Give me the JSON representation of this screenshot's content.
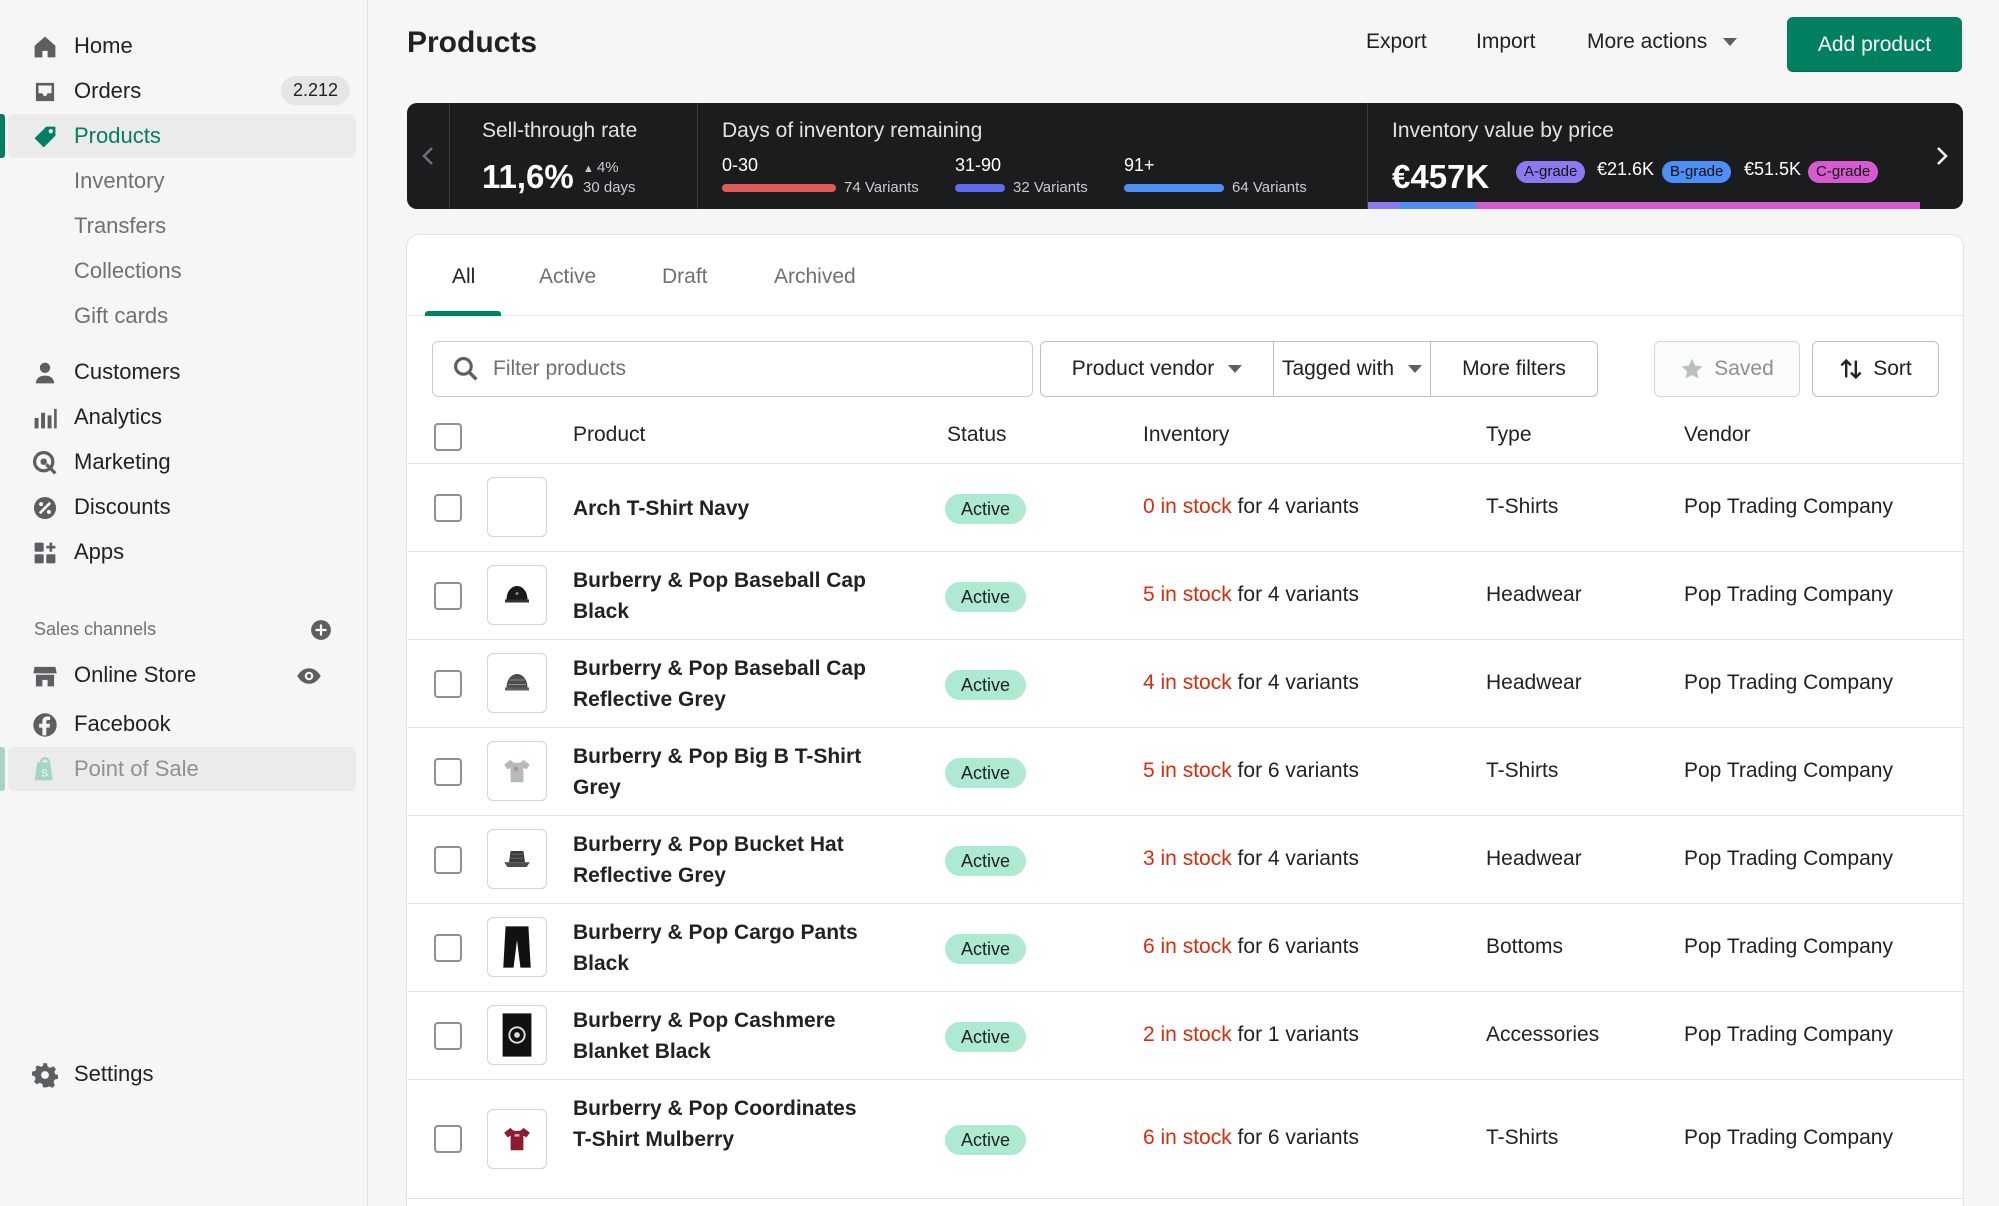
{
  "sidebar": {
    "items": [
      {
        "label": "Home",
        "icon": "home-icon"
      },
      {
        "label": "Orders",
        "icon": "orders-icon",
        "badge": "2.212"
      },
      {
        "label": "Products",
        "icon": "tag-icon"
      },
      {
        "label": "Inventory"
      },
      {
        "label": "Transfers"
      },
      {
        "label": "Collections"
      },
      {
        "label": "Gift cards"
      },
      {
        "label": "Customers",
        "icon": "person-icon"
      },
      {
        "label": "Analytics",
        "icon": "analytics-icon"
      },
      {
        "label": "Marketing",
        "icon": "marketing-icon"
      },
      {
        "label": "Discounts",
        "icon": "discount-icon"
      },
      {
        "label": "Apps",
        "icon": "apps-icon"
      }
    ],
    "sales_channels_title": "Sales channels",
    "channels": [
      {
        "label": "Online Store",
        "icon": "store-icon"
      },
      {
        "label": "Facebook",
        "icon": "facebook-icon"
      },
      {
        "label": "Point of Sale",
        "icon": "pos-icon"
      }
    ],
    "settings": "Settings",
    "accent": "#008060"
  },
  "header": {
    "title": "Products",
    "export": "Export",
    "import": "Import",
    "more_actions": "More actions",
    "add_product": "Add product"
  },
  "stats": {
    "sell_through": {
      "title": "Sell-through rate",
      "value": "11,6%",
      "delta": "4%",
      "period": "30 days"
    },
    "days_remaining": {
      "title": "Days of inventory remaining",
      "buckets": [
        {
          "range": "0-30",
          "variants": "74 Variants",
          "color": "#e05a5a"
        },
        {
          "range": "31-90",
          "variants": "32 Variants",
          "color": "#5b6cf0"
        },
        {
          "range": "91+",
          "variants": "64 Variants",
          "color": "#4d8ef7"
        }
      ]
    },
    "inventory_value": {
      "title": "Inventory value by price",
      "value": "€457K",
      "grades": [
        {
          "label": "A-grade",
          "value": "€21.6K",
          "color": "#8a7cf0"
        },
        {
          "label": "B-grade",
          "value": "€51.5K",
          "color": "#4d8ef7"
        },
        {
          "label": "C-grade",
          "value": "",
          "color": "#d65bd0"
        }
      ]
    }
  },
  "tabs": [
    "All",
    "Active",
    "Draft",
    "Archived"
  ],
  "filters": {
    "search_placeholder": "Filter products",
    "vendor": "Product vendor",
    "tagged": "Tagged with",
    "more": "More filters",
    "saved": "Saved",
    "sort": "Sort"
  },
  "table": {
    "columns": [
      "Product",
      "Status",
      "Inventory",
      "Type",
      "Vendor"
    ],
    "rows": [
      {
        "name": "Arch T-Shirt Navy",
        "status": "Active",
        "stock": "0 in stock",
        "variants": " for 4 variants",
        "type": "T-Shirts",
        "vendor": "Pop Trading Company",
        "thumb": "empty"
      },
      {
        "name": "Burberry & Pop Baseball Cap Black",
        "status": "Active",
        "stock": "5 in stock",
        "variants": " for 4 variants",
        "type": "Headwear",
        "vendor": "Pop Trading Company",
        "thumb": "cap-black"
      },
      {
        "name": "Burberry & Pop Baseball Cap Reflective Grey",
        "status": "Active",
        "stock": "4 in stock",
        "variants": " for 4 variants",
        "type": "Headwear",
        "vendor": "Pop Trading Company",
        "thumb": "cap-grey"
      },
      {
        "name": "Burberry & Pop Big B T-Shirt Grey",
        "status": "Active",
        "stock": "5 in stock",
        "variants": " for 6 variants",
        "type": "T-Shirts",
        "vendor": "Pop Trading Company",
        "thumb": "tshirt-grey"
      },
      {
        "name": "Burberry & Pop Bucket Hat Reflective Grey",
        "status": "Active",
        "stock": "3 in stock",
        "variants": " for 4 variants",
        "type": "Headwear",
        "vendor": "Pop Trading Company",
        "thumb": "bucket-hat"
      },
      {
        "name": "Burberry & Pop Cargo Pants Black",
        "status": "Active",
        "stock": "6 in stock",
        "variants": " for 6 variants",
        "type": "Bottoms",
        "vendor": "Pop Trading Company",
        "thumb": "pants"
      },
      {
        "name": "Burberry & Pop Cashmere Blanket Black",
        "status": "Active",
        "stock": "2 in stock",
        "variants": " for 1 variants",
        "type": "Accessories",
        "vendor": "Pop Trading Company",
        "thumb": "blanket"
      },
      {
        "name": "Burberry & Pop Coordinates T-Shirt Mulberry",
        "status": "Active",
        "stock": "6 in stock",
        "variants": " for 6 variants",
        "type": "T-Shirts",
        "vendor": "Pop Trading Company",
        "thumb": "tshirt-mulberry"
      }
    ]
  }
}
